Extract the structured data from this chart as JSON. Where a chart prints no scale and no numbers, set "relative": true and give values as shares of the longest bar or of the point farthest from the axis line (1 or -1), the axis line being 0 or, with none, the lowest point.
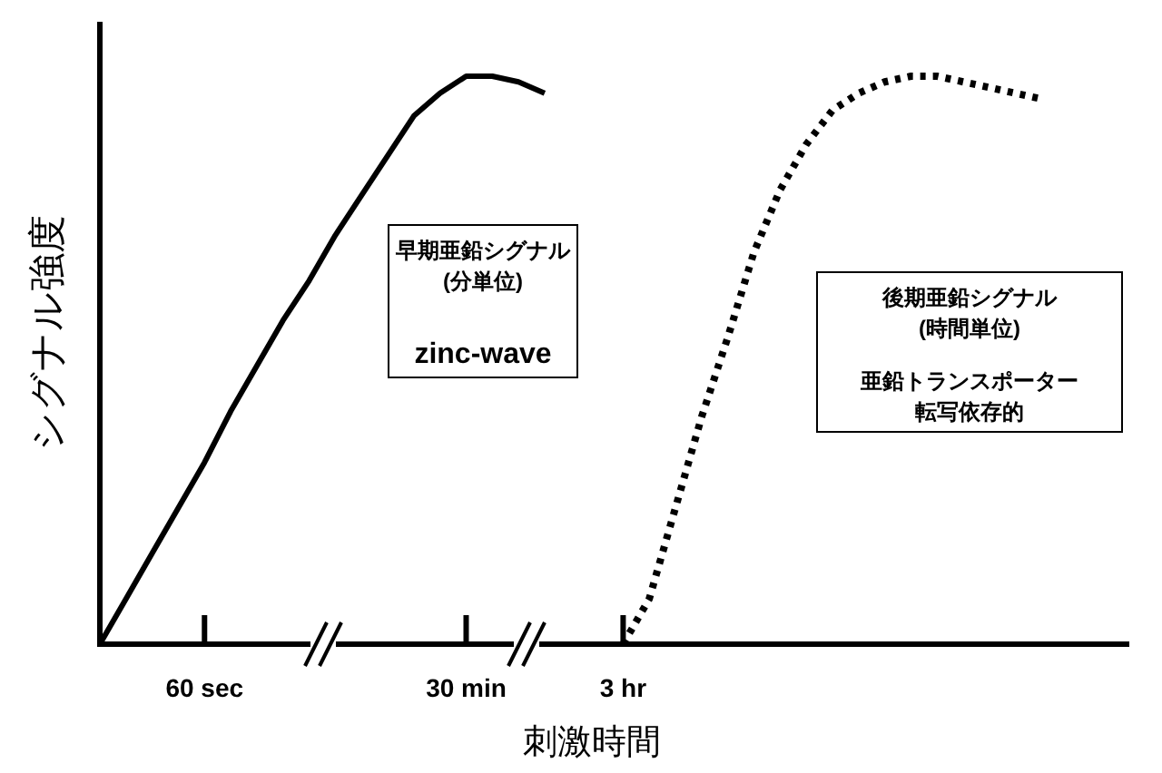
{
  "chart_data": {
    "type": "line",
    "relative": true,
    "ylabel": "シグナル強度",
    "xlabel": "刺激時間",
    "categories": [
      null,
      null,
      null,
      null,
      "60 sec",
      null,
      null,
      null,
      null,
      null,
      null,
      null,
      null,
      null,
      "30 min",
      null,
      null,
      null,
      null,
      null,
      "3 hr",
      null,
      null,
      null,
      null,
      null,
      null,
      null,
      null,
      null,
      null,
      null,
      null,
      null,
      null,
      null,
      null,
      null,
      null,
      null
    ],
    "series": [
      {
        "color": "#000000",
        "line_style": "solid",
        "values": [
          0,
          0.08,
          0.16,
          0.24,
          0.32,
          0.41,
          0.49,
          0.57,
          0.64,
          0.72,
          0.79,
          0.86,
          0.93,
          0.97,
          1.0,
          1.0,
          0.99,
          0.97,
          null,
          null,
          null,
          null,
          null,
          null,
          null,
          null,
          null,
          null,
          null,
          null,
          null,
          null,
          null,
          null,
          null,
          null,
          null,
          null,
          null,
          null
        ]
      },
      {
        "color": "#000000",
        "line_style": "dotted",
        "values": [
          null,
          null,
          null,
          null,
          null,
          null,
          null,
          null,
          null,
          null,
          null,
          null,
          null,
          null,
          null,
          null,
          null,
          null,
          null,
          null,
          0,
          0.08,
          0.24,
          0.4,
          0.54,
          0.69,
          0.8,
          0.88,
          0.94,
          0.97,
          0.99,
          1.0,
          1.0,
          0.99,
          0.98,
          0.97,
          0.96,
          null,
          null,
          null
        ]
      }
    ],
    "annotations": [
      "早期亜鉛シグナル",
      "(分単位)",
      "zinc-wave",
      "後期亜鉛シグナル",
      "(時間単位)",
      "亜鉛トランスポーター",
      "転写依存的"
    ]
  }
}
